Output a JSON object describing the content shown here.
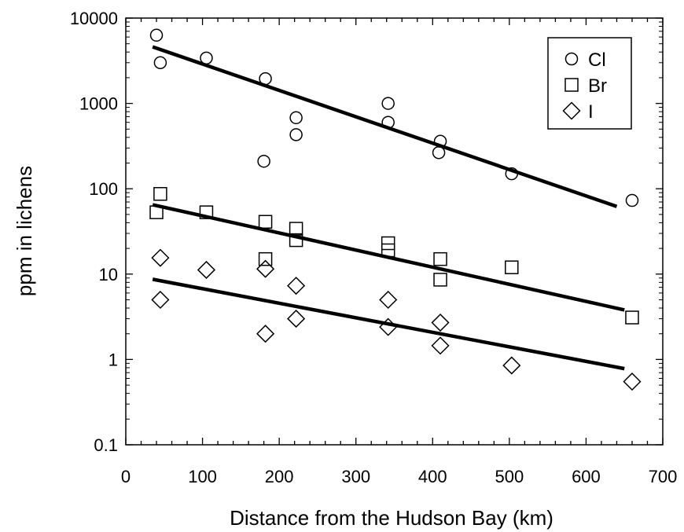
{
  "chart_data": {
    "type": "scatter",
    "xlabel": "Distance from the Hudson Bay (km)",
    "ylabel": "ppm in lichens",
    "xlim": [
      0,
      700
    ],
    "ylim": [
      0.1,
      10000
    ],
    "yscale": "log",
    "x_ticks": [
      "0",
      "100",
      "200",
      "300",
      "400",
      "500",
      "600",
      "700"
    ],
    "y_ticks": [
      "0.1",
      "1",
      "10",
      "100",
      "1000",
      "10000"
    ],
    "legend_position": "top-right",
    "series": [
      {
        "name": "Cl",
        "marker": "circle",
        "points": [
          [
            40,
            6300
          ],
          [
            45,
            3000
          ],
          [
            105,
            3400
          ],
          [
            182,
            1950
          ],
          [
            180,
            210
          ],
          [
            222,
            680
          ],
          [
            222,
            430
          ],
          [
            342,
            1000
          ],
          [
            342,
            600
          ],
          [
            410,
            360
          ],
          [
            408,
            265
          ],
          [
            503,
            150
          ],
          [
            660,
            73
          ]
        ],
        "fit": [
          [
            35,
            4600
          ],
          [
            640,
            62
          ]
        ]
      },
      {
        "name": "Br",
        "marker": "square",
        "points": [
          [
            45,
            87
          ],
          [
            40,
            53
          ],
          [
            105,
            53
          ],
          [
            182,
            41
          ],
          [
            182,
            15
          ],
          [
            222,
            34
          ],
          [
            222,
            25
          ],
          [
            342,
            23
          ],
          [
            342,
            19
          ],
          [
            410,
            15
          ],
          [
            410,
            8.6
          ],
          [
            503,
            12
          ],
          [
            660,
            3.1
          ]
        ],
        "fit": [
          [
            35,
            65
          ],
          [
            650,
            3.8
          ]
        ]
      },
      {
        "name": "I",
        "marker": "diamond",
        "points": [
          [
            45,
            15.5
          ],
          [
            45,
            5
          ],
          [
            105,
            11.2
          ],
          [
            182,
            11.5
          ],
          [
            182,
            2
          ],
          [
            222,
            7.3
          ],
          [
            222,
            3
          ],
          [
            342,
            5
          ],
          [
            342,
            2.4
          ],
          [
            410,
            2.7
          ],
          [
            410,
            1.45
          ],
          [
            503,
            0.85
          ],
          [
            660,
            0.55
          ]
        ],
        "fit": [
          [
            35,
            8.7
          ],
          [
            650,
            0.78
          ]
        ]
      }
    ]
  }
}
